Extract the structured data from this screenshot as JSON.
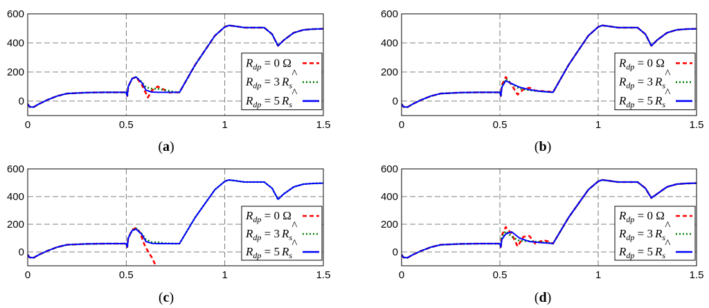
{
  "chart_data": [
    {
      "type": "line",
      "panel": "a",
      "caption_open": "(",
      "caption_letter": "a",
      "caption_close": ")",
      "xlim": [
        0,
        1.5
      ],
      "ylim": [
        -100,
        600
      ],
      "x_ticks": [
        "0",
        "0.5",
        "1",
        "1.5"
      ],
      "y_ticks": [
        "0",
        "200",
        "400",
        "600"
      ],
      "grid": true,
      "legend_position": "right",
      "series": [
        {
          "name": "R_dp = 0 Ω",
          "color": "#ff0000",
          "style": "dashed",
          "x": [
            0,
            0.01,
            0.03,
            0.06,
            0.1,
            0.15,
            0.2,
            0.3,
            0.4,
            0.5,
            0.505,
            0.51,
            0.53,
            0.55,
            0.58,
            0.61,
            0.63,
            0.66,
            0.69,
            0.72,
            0.75,
            0.77,
            0.85,
            0.95,
            1.0,
            1.02,
            1.05,
            1.1,
            1.2,
            1.24,
            1.27,
            1.3,
            1.35,
            1.4,
            1.45,
            1.5
          ],
          "y": [
            -20,
            -40,
            -42,
            -18,
            8,
            35,
            52,
            58,
            60,
            60,
            35,
            100,
            155,
            165,
            110,
            25,
            72,
            100,
            80,
            58,
            60,
            60,
            250,
            450,
            510,
            520,
            515,
            505,
            505,
            460,
            380,
            420,
            470,
            490,
            495,
            497
          ]
        },
        {
          "name": "R_dp = 3 R̂_s",
          "color": "#008000",
          "style": "dotted",
          "x": [
            0,
            0.01,
            0.03,
            0.06,
            0.1,
            0.15,
            0.2,
            0.3,
            0.4,
            0.5,
            0.505,
            0.51,
            0.53,
            0.55,
            0.58,
            0.6,
            0.63,
            0.66,
            0.7,
            0.75,
            0.77,
            0.85,
            0.95,
            1.0,
            1.02,
            1.05,
            1.1,
            1.2,
            1.24,
            1.27,
            1.3,
            1.35,
            1.4,
            1.45,
            1.5
          ],
          "y": [
            -20,
            -40,
            -42,
            -18,
            8,
            35,
            52,
            58,
            60,
            60,
            35,
            100,
            155,
            165,
            130,
            95,
            85,
            85,
            75,
            62,
            60,
            250,
            450,
            510,
            520,
            515,
            505,
            505,
            460,
            380,
            420,
            470,
            490,
            495,
            497
          ]
        },
        {
          "name": "R_dp = 5 R̂_s",
          "color": "#0000ff",
          "style": "solid",
          "x": [
            0,
            0.01,
            0.03,
            0.06,
            0.1,
            0.15,
            0.2,
            0.3,
            0.4,
            0.5,
            0.505,
            0.51,
            0.53,
            0.55,
            0.58,
            0.6,
            0.63,
            0.66,
            0.7,
            0.75,
            0.77,
            0.85,
            0.95,
            1.0,
            1.02,
            1.05,
            1.1,
            1.2,
            1.24,
            1.27,
            1.3,
            1.35,
            1.4,
            1.45,
            1.5
          ],
          "y": [
            -20,
            -40,
            -42,
            -18,
            8,
            35,
            52,
            58,
            60,
            60,
            35,
            100,
            155,
            165,
            125,
            75,
            62,
            60,
            60,
            60,
            60,
            250,
            450,
            510,
            520,
            515,
            505,
            505,
            460,
            380,
            420,
            470,
            490,
            495,
            497
          ]
        }
      ]
    },
    {
      "type": "line",
      "panel": "b",
      "caption_open": "(",
      "caption_letter": "b",
      "caption_close": ")",
      "xlim": [
        0,
        1.5
      ],
      "ylim": [
        -100,
        600
      ],
      "x_ticks": [
        "0",
        "0.5",
        "1",
        "1.5"
      ],
      "y_ticks": [
        "0",
        "200",
        "400",
        "600"
      ],
      "grid": true,
      "legend_position": "right",
      "series": [
        {
          "name": "R_dp = 0 Ω",
          "color": "#ff0000",
          "style": "dashed",
          "x": [
            0,
            0.01,
            0.03,
            0.06,
            0.1,
            0.15,
            0.2,
            0.3,
            0.4,
            0.5,
            0.505,
            0.51,
            0.53,
            0.56,
            0.59,
            0.62,
            0.65,
            0.68,
            0.72,
            0.75,
            0.77,
            0.85,
            0.95,
            1.0,
            1.02,
            1.05,
            1.1,
            1.2,
            1.24,
            1.27,
            1.3,
            1.35,
            1.4,
            1.45,
            1.5
          ],
          "y": [
            -20,
            -40,
            -42,
            -18,
            8,
            35,
            52,
            58,
            60,
            60,
            35,
            110,
            165,
            110,
            45,
            80,
            92,
            72,
            68,
            65,
            60,
            250,
            450,
            510,
            520,
            515,
            505,
            505,
            460,
            380,
            420,
            470,
            490,
            495,
            497
          ]
        },
        {
          "name": "R_dp = 3 R̂_s",
          "color": "#008000",
          "style": "dotted",
          "x": [
            0,
            0.01,
            0.03,
            0.06,
            0.1,
            0.15,
            0.2,
            0.3,
            0.4,
            0.5,
            0.505,
            0.51,
            0.53,
            0.56,
            0.6,
            0.65,
            0.7,
            0.75,
            0.77,
            0.85,
            0.95,
            1.0,
            1.02,
            1.05,
            1.1,
            1.2,
            1.24,
            1.27,
            1.3,
            1.35,
            1.4,
            1.45,
            1.5
          ],
          "y": [
            -20,
            -40,
            -42,
            -18,
            8,
            35,
            52,
            58,
            60,
            60,
            35,
            100,
            150,
            120,
            85,
            75,
            68,
            62,
            60,
            250,
            450,
            510,
            520,
            515,
            505,
            505,
            460,
            380,
            420,
            470,
            490,
            495,
            497
          ]
        },
        {
          "name": "R_dp = 5 R̂_s",
          "color": "#0000ff",
          "style": "solid",
          "x": [
            0,
            0.01,
            0.03,
            0.06,
            0.1,
            0.15,
            0.2,
            0.3,
            0.4,
            0.5,
            0.505,
            0.51,
            0.53,
            0.56,
            0.6,
            0.65,
            0.7,
            0.75,
            0.77,
            0.85,
            0.95,
            1.0,
            1.02,
            1.05,
            1.1,
            1.2,
            1.24,
            1.27,
            1.3,
            1.35,
            1.4,
            1.45,
            1.5
          ],
          "y": [
            -20,
            -40,
            -42,
            -18,
            8,
            35,
            52,
            58,
            60,
            60,
            35,
            95,
            140,
            120,
            95,
            78,
            68,
            62,
            60,
            250,
            450,
            510,
            520,
            515,
            505,
            505,
            460,
            380,
            420,
            470,
            490,
            495,
            497
          ]
        }
      ]
    },
    {
      "type": "line",
      "panel": "c",
      "caption_open": "(",
      "caption_letter": "c",
      "caption_close": ")",
      "xlim": [
        0,
        1.5
      ],
      "ylim": [
        -100,
        600
      ],
      "x_ticks": [
        "0",
        "0.5",
        "1",
        "1.5"
      ],
      "y_ticks": [
        "0",
        "200",
        "400",
        "600"
      ],
      "grid": true,
      "legend_position": "right",
      "series": [
        {
          "name": "R_dp = 0 Ω",
          "color": "#ff0000",
          "style": "dashed",
          "x": [
            0,
            0.01,
            0.03,
            0.06,
            0.1,
            0.15,
            0.2,
            0.3,
            0.4,
            0.5,
            0.505,
            0.51,
            0.53,
            0.55,
            0.57,
            0.59,
            0.61,
            0.63,
            0.65
          ],
          "y": [
            -20,
            -40,
            -42,
            -18,
            8,
            35,
            52,
            58,
            60,
            60,
            35,
            100,
            160,
            175,
            140,
            60,
            5,
            -40,
            -100
          ]
        },
        {
          "name": "R_dp = 3 R̂_s",
          "color": "#008000",
          "style": "dotted",
          "x": [
            0,
            0.01,
            0.03,
            0.06,
            0.1,
            0.15,
            0.2,
            0.3,
            0.4,
            0.5,
            0.505,
            0.51,
            0.53,
            0.55,
            0.58,
            0.6,
            0.63,
            0.66,
            0.7,
            0.75,
            0.77,
            0.85,
            0.95,
            1.0,
            1.02,
            1.05,
            1.1,
            1.2,
            1.24,
            1.27,
            1.3,
            1.35,
            1.4,
            1.45,
            1.5
          ],
          "y": [
            -20,
            -40,
            -42,
            -18,
            8,
            35,
            52,
            58,
            60,
            60,
            35,
            100,
            155,
            170,
            130,
            90,
            70,
            70,
            62,
            60,
            60,
            250,
            450,
            510,
            520,
            515,
            505,
            505,
            460,
            380,
            420,
            470,
            490,
            495,
            497
          ]
        },
        {
          "name": "R_dp = 5 R̂_s",
          "color": "#0000ff",
          "style": "solid",
          "x": [
            0,
            0.01,
            0.03,
            0.06,
            0.1,
            0.15,
            0.2,
            0.3,
            0.4,
            0.5,
            0.505,
            0.51,
            0.53,
            0.55,
            0.58,
            0.6,
            0.63,
            0.66,
            0.7,
            0.75,
            0.77,
            0.85,
            0.95,
            1.0,
            1.02,
            1.05,
            1.1,
            1.2,
            1.24,
            1.27,
            1.3,
            1.35,
            1.4,
            1.45,
            1.5
          ],
          "y": [
            -20,
            -40,
            -42,
            -18,
            8,
            35,
            52,
            58,
            60,
            60,
            35,
            100,
            155,
            165,
            125,
            75,
            62,
            60,
            60,
            60,
            60,
            250,
            450,
            510,
            520,
            515,
            505,
            505,
            460,
            380,
            420,
            470,
            490,
            495,
            497
          ]
        }
      ]
    },
    {
      "type": "line",
      "panel": "d",
      "caption_open": "(",
      "caption_letter": "d",
      "caption_close": ")",
      "xlim": [
        0,
        1.5
      ],
      "ylim": [
        -100,
        600
      ],
      "x_ticks": [
        "0",
        "0.5",
        "1",
        "1.5"
      ],
      "y_ticks": [
        "0",
        "200",
        "400",
        "600"
      ],
      "grid": true,
      "legend_position": "right",
      "series": [
        {
          "name": "R_dp = 0 Ω",
          "color": "#ff0000",
          "style": "dashed",
          "x": [
            0,
            0.01,
            0.03,
            0.06,
            0.1,
            0.15,
            0.2,
            0.3,
            0.4,
            0.5,
            0.505,
            0.51,
            0.53,
            0.56,
            0.59,
            0.62,
            0.65,
            0.68,
            0.72,
            0.75,
            0.77,
            0.85,
            0.95,
            1.0,
            1.02,
            1.05,
            1.1,
            1.2,
            1.24,
            1.27,
            1.3,
            1.35,
            1.4,
            1.45,
            1.5
          ],
          "y": [
            -20,
            -40,
            -42,
            -18,
            8,
            35,
            52,
            58,
            60,
            60,
            35,
            120,
            180,
            130,
            40,
            110,
            115,
            60,
            85,
            75,
            60,
            250,
            450,
            510,
            520,
            515,
            505,
            505,
            460,
            390,
            420,
            470,
            490,
            495,
            497
          ]
        },
        {
          "name": "R_dp = 3 R̂_s",
          "color": "#008000",
          "style": "dotted",
          "x": [
            0,
            0.01,
            0.03,
            0.06,
            0.1,
            0.15,
            0.2,
            0.3,
            0.4,
            0.5,
            0.505,
            0.51,
            0.53,
            0.56,
            0.6,
            0.65,
            0.7,
            0.75,
            0.77,
            0.85,
            0.95,
            1.0,
            1.02,
            1.05,
            1.1,
            1.2,
            1.24,
            1.27,
            1.3,
            1.35,
            1.4,
            1.45,
            1.5
          ],
          "y": [
            -20,
            -40,
            -42,
            -18,
            8,
            35,
            52,
            58,
            60,
            60,
            35,
            110,
            150,
            110,
            80,
            78,
            72,
            65,
            60,
            250,
            450,
            510,
            520,
            515,
            505,
            505,
            460,
            390,
            420,
            470,
            490,
            495,
            497
          ]
        },
        {
          "name": "R_dp = 5 R̂_s",
          "color": "#0000ff",
          "style": "solid",
          "x": [
            0,
            0.01,
            0.03,
            0.06,
            0.1,
            0.15,
            0.2,
            0.3,
            0.4,
            0.5,
            0.505,
            0.51,
            0.53,
            0.56,
            0.6,
            0.65,
            0.7,
            0.75,
            0.77,
            0.85,
            0.95,
            1.0,
            1.02,
            1.05,
            1.1,
            1.2,
            1.24,
            1.27,
            1.3,
            1.35,
            1.4,
            1.45,
            1.5
          ],
          "y": [
            -20,
            -40,
            -42,
            -18,
            8,
            35,
            52,
            58,
            60,
            60,
            35,
            90,
            130,
            145,
            100,
            75,
            68,
            63,
            60,
            250,
            450,
            510,
            520,
            515,
            505,
            505,
            460,
            390,
            420,
            470,
            490,
            495,
            497
          ]
        }
      ]
    }
  ],
  "legend_entries": [
    {
      "sym": "R",
      "sub": "dp",
      "eq": " = 0 Ω",
      "hat": false
    },
    {
      "sym": "R",
      "sub": "dp",
      "eq": " = 3",
      "hat": true,
      "hat_sym": "R",
      "hat_sub": "s"
    },
    {
      "sym": "R",
      "sub": "dp",
      "eq": " = 5",
      "hat": true,
      "hat_sym": "R",
      "hat_sub": "s"
    }
  ]
}
